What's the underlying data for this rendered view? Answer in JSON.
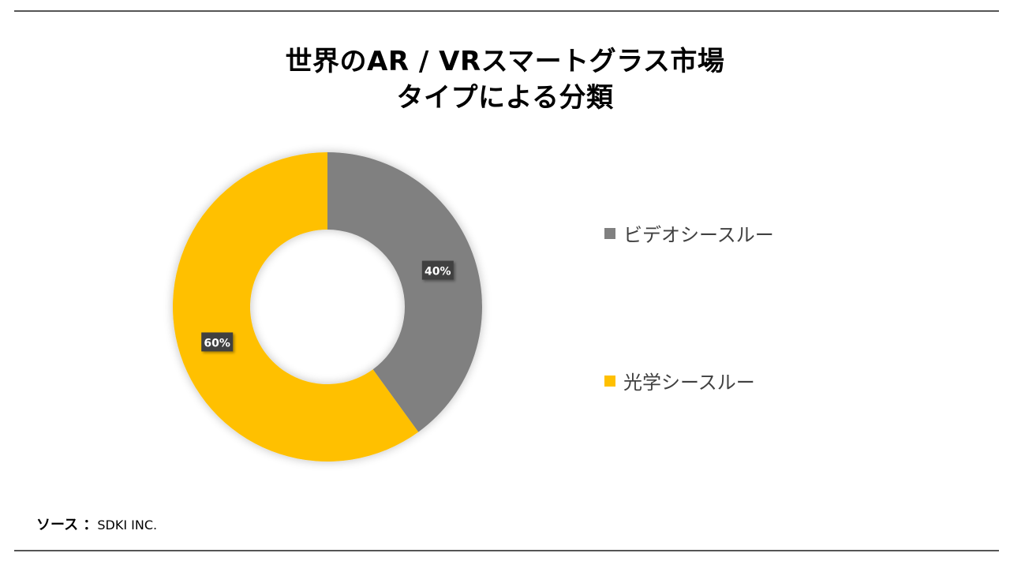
{
  "title_line1": "世界のAR / VRスマートグラス市場",
  "title_line2": "タイプによる分類",
  "chart_data": {
    "type": "pie",
    "variant": "donut",
    "categories": [
      "ビデオシースルー",
      "光学シースルー"
    ],
    "values": [
      40,
      60
    ],
    "labels": [
      "40%",
      "60%"
    ],
    "colors": [
      "#808080",
      "#FFC000"
    ],
    "legend_placement": "right"
  },
  "source": {
    "label": "ソース ：",
    "value": "SDKI INC."
  }
}
